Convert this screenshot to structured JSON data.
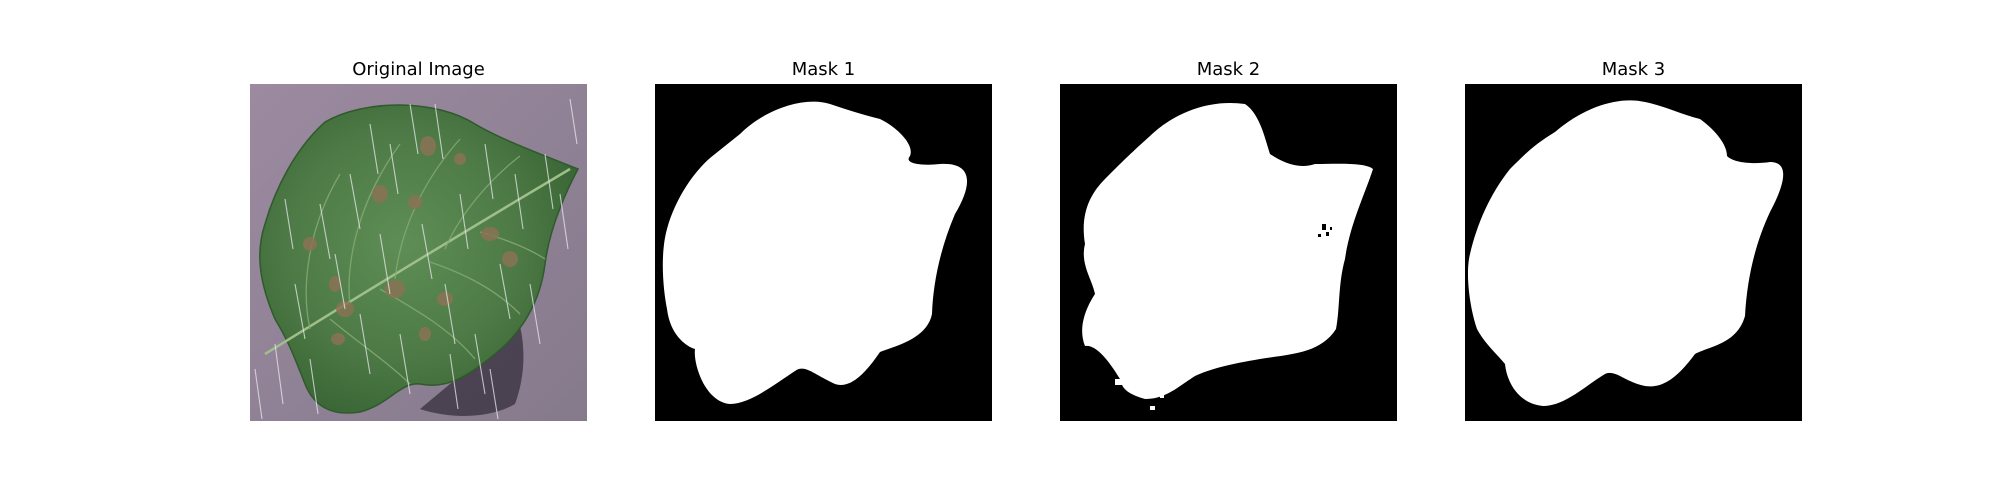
{
  "figure": {
    "panels": [
      {
        "title": "Original Image",
        "content": "leaf-photo"
      },
      {
        "title": "Mask 1",
        "content": "mask"
      },
      {
        "title": "Mask 2",
        "content": "mask"
      },
      {
        "title": "Mask 3",
        "content": "mask"
      }
    ]
  },
  "colors": {
    "mask_background": "#000000",
    "mask_foreground": "#ffffff",
    "photo_background": "#8e7f93",
    "leaf": "#4f7d48",
    "leaf_dark": "#3d6838",
    "leaf_spot": "#8a7355",
    "shadow": "#3f3747"
  }
}
